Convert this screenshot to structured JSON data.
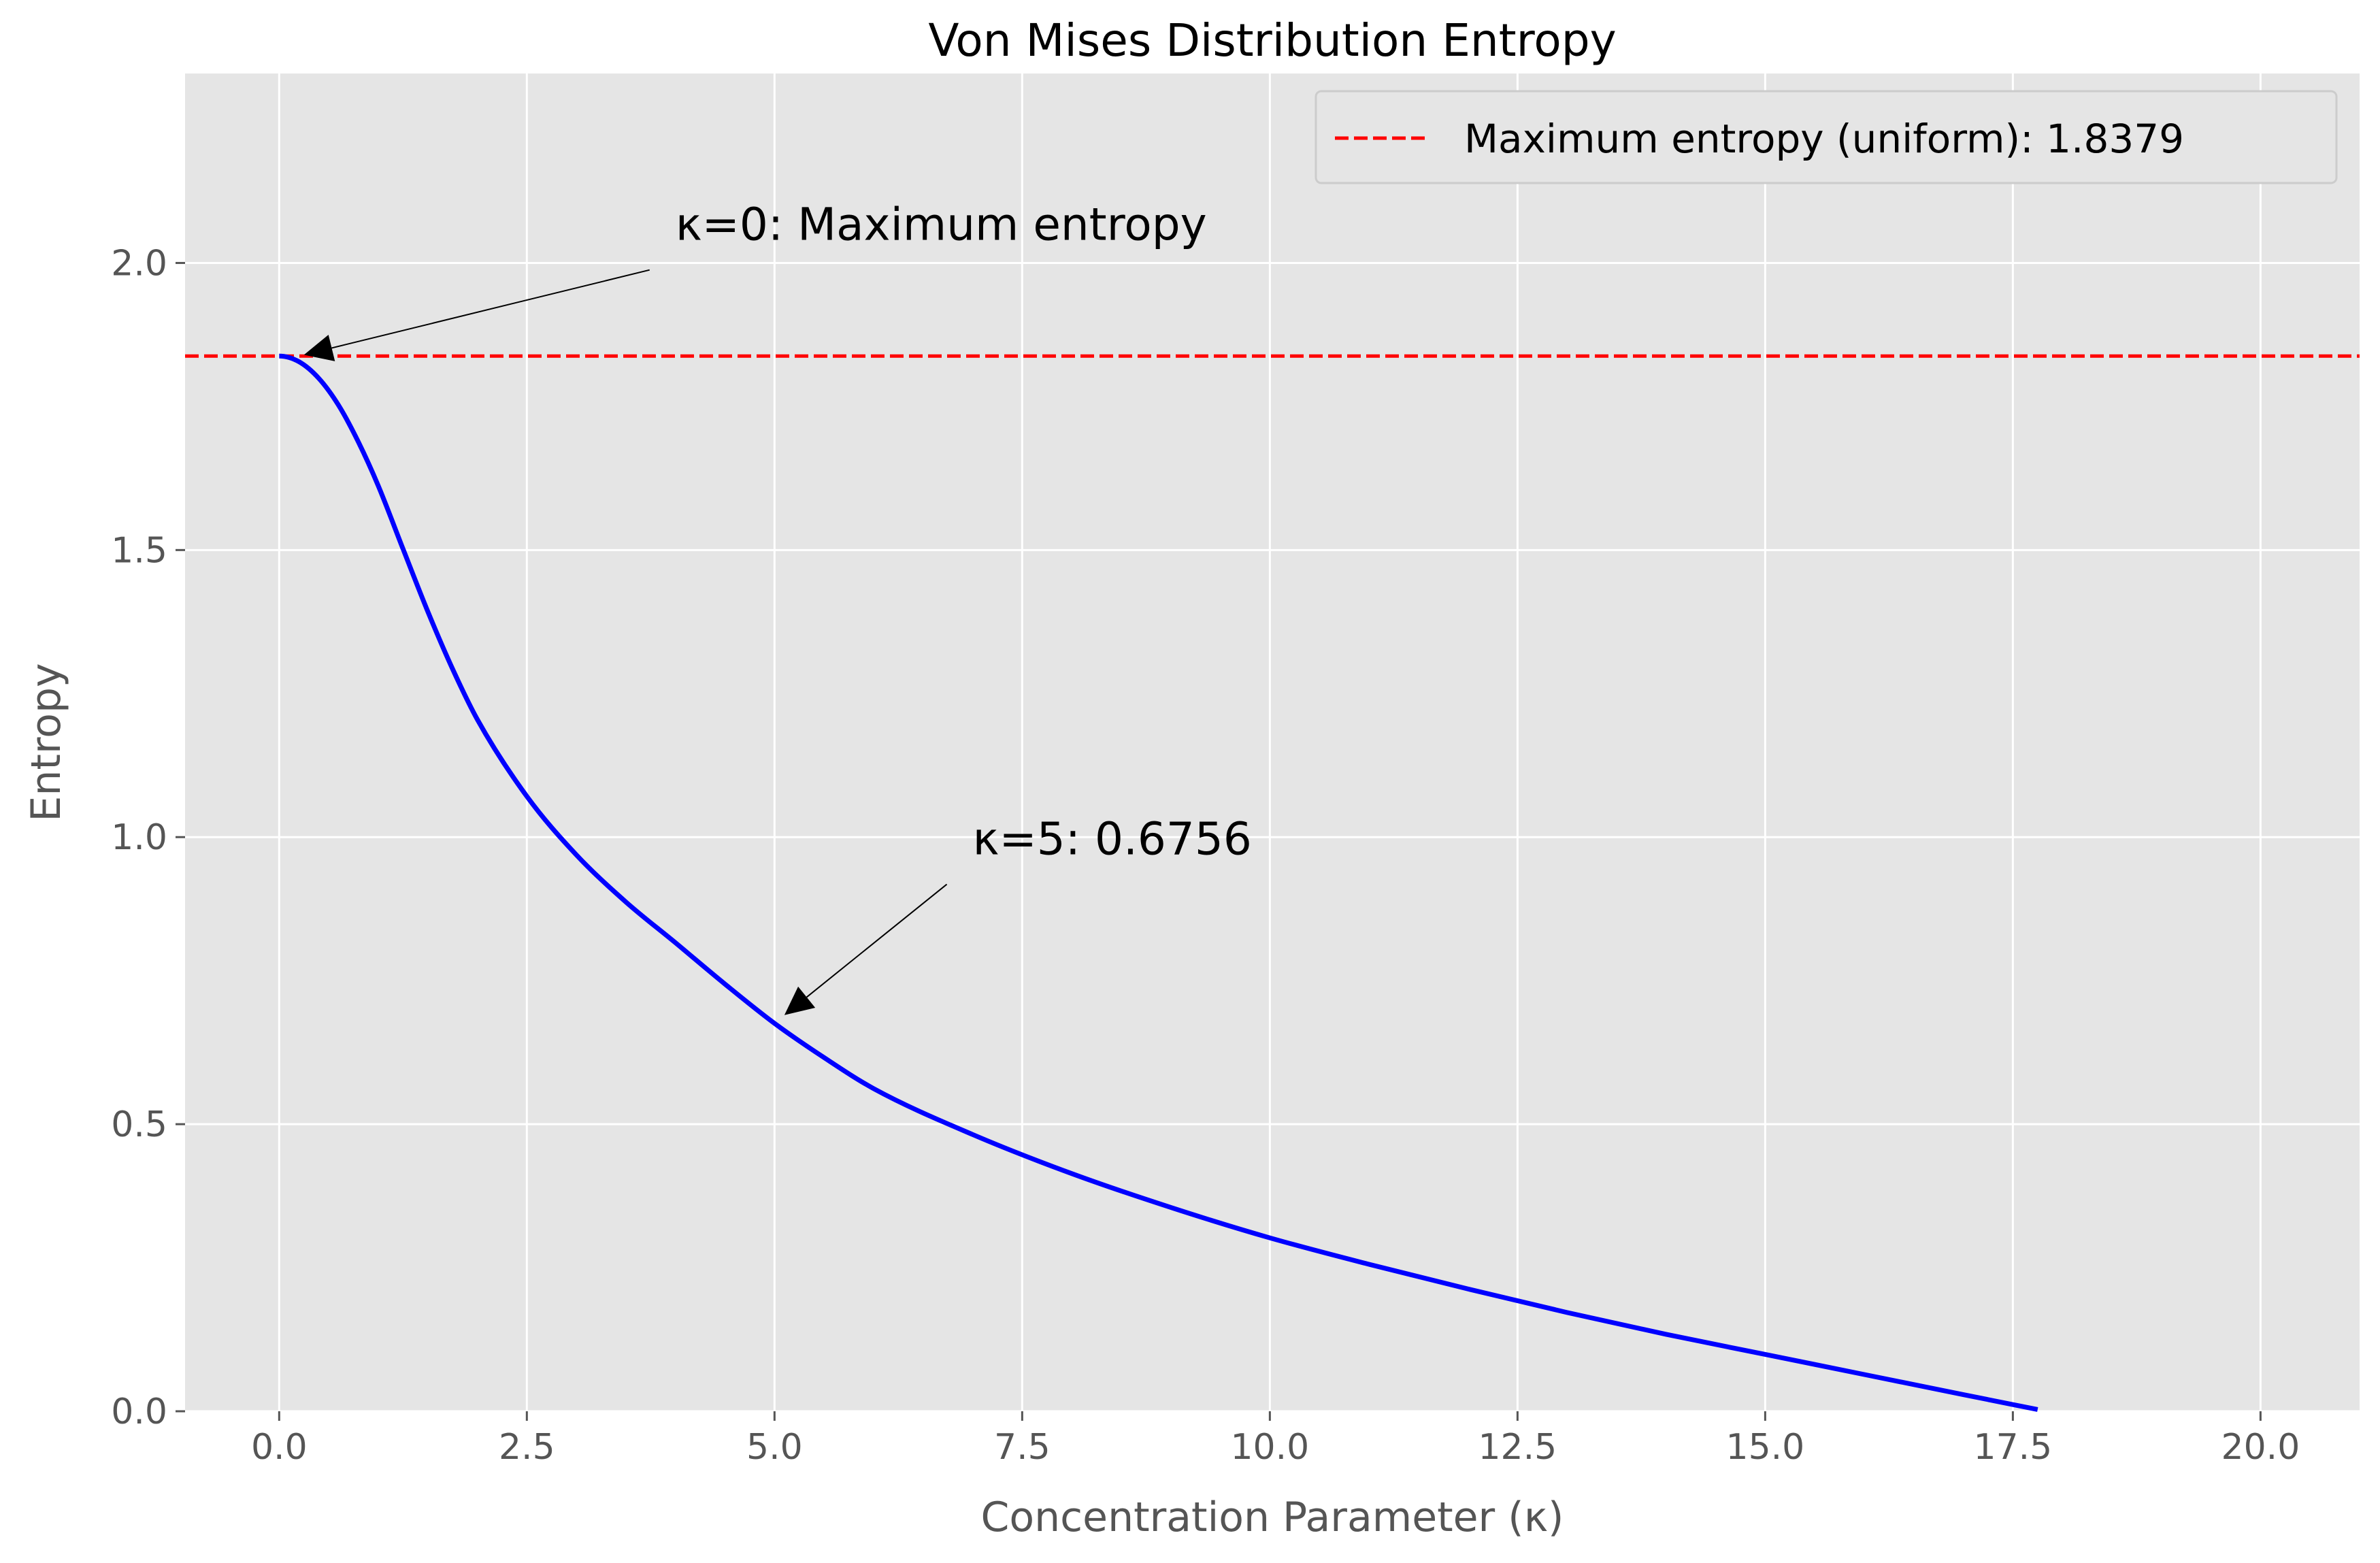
{
  "chart_data": {
    "type": "line",
    "title": "Von Mises Distribution Entropy",
    "xlabel": "Concentration Parameter (κ)",
    "ylabel": "Entropy",
    "xlim": [
      -0.95,
      21.0
    ],
    "ylim": [
      0.0,
      2.33
    ],
    "xticks": [
      0.0,
      2.5,
      5.0,
      7.5,
      10.0,
      12.5,
      15.0,
      17.5,
      20.0
    ],
    "xtick_labels": [
      "0.0",
      "2.5",
      "5.0",
      "7.5",
      "10.0",
      "12.5",
      "15.0",
      "17.5",
      "20.0"
    ],
    "yticks": [
      0.0,
      0.5,
      1.0,
      1.5,
      2.0
    ],
    "ytick_labels": [
      "0.0",
      "0.5",
      "1.0",
      "1.5",
      "2.0"
    ],
    "grid": true,
    "legend_position": "top-right",
    "series": [
      {
        "color": "#0000ff",
        "style": "solid",
        "x": [
          0,
          0.2,
          0.4,
          0.6,
          0.8,
          1.0,
          1.25,
          1.5,
          1.75,
          2.0,
          2.5,
          3.0,
          3.5,
          4.0,
          4.5,
          5.0,
          5.5,
          6.0,
          7.0,
          8.0,
          9.0,
          10.0,
          11.0,
          12.0,
          13.0,
          14.0,
          15.0,
          16.0,
          17.0,
          17.75
        ],
        "y": [
          1.8379,
          1.828,
          1.799,
          1.752,
          1.688,
          1.612,
          1.502,
          1.393,
          1.293,
          1.205,
          1.071,
          0.969,
          0.887,
          0.816,
          0.744,
          0.6756,
          0.616,
          0.562,
          0.482,
          0.414,
          0.355,
          0.302,
          0.256,
          0.213,
          0.172,
          0.134,
          0.099,
          0.064,
          0.029,
          0.003
        ]
      },
      {
        "name": "Maximum entropy (uniform): 1.8379",
        "color": "#ff0000",
        "style": "dashed",
        "y": 1.8379
      }
    ],
    "annotations": [
      {
        "text": "κ=0: Maximum entropy",
        "text_xy": [
          4.0,
          2.04
        ],
        "arrow_to": [
          0.25,
          1.84
        ]
      },
      {
        "text": "κ=5: 0.6756",
        "text_xy": [
          7.0,
          0.97
        ],
        "arrow_to": [
          5.1,
          0.69
        ]
      }
    ]
  }
}
